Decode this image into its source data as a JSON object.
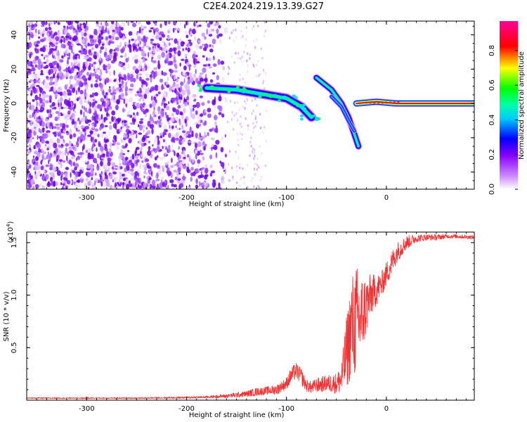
{
  "title": "C2E4.2024.219.13.39.G27",
  "chart_data": [
    {
      "type": "heatmap",
      "xlabel": "Height of straight line (km)",
      "ylabel": "Frequency (Hz)",
      "xlim": [
        -360,
        88
      ],
      "ylim": [
        -50,
        48
      ],
      "xticks": [
        -300,
        -200,
        -100,
        0
      ],
      "yticks": [
        -40,
        -20,
        0,
        20,
        40
      ],
      "colorbar": {
        "label": "Normalized spectral amplitude",
        "range": [
          0,
          0.97
        ],
        "ticks": [
          "0.0",
          "0.2",
          "0.4",
          "0.6",
          "0.8"
        ],
        "tick_values": [
          0,
          0.2,
          0.4,
          0.6,
          0.8
        ],
        "colors": [
          "#ffffff",
          "#8800ff",
          "#0000ff",
          "#00ffff",
          "#00ff00",
          "#ffff00",
          "#ff0000",
          "#ff00aa"
        ]
      },
      "features": [
        {
          "name": "noise",
          "x_range": [
            -360,
            -160
          ],
          "f_range": [
            -50,
            48
          ]
        },
        {
          "name": "band",
          "points": [
            [
              -180,
              9
            ],
            [
              -150,
              8
            ],
            [
              -120,
              5
            ],
            [
              -100,
              3
            ],
            [
              -85,
              -2
            ],
            [
              -75,
              -8
            ]
          ]
        },
        {
          "name": "branch",
          "points": [
            [
              -70,
              15
            ],
            [
              -55,
              8
            ],
            [
              -45,
              0
            ],
            [
              -38,
              -8
            ],
            [
              -32,
              -18
            ],
            [
              -28,
              -25
            ]
          ]
        },
        {
          "name": "branch",
          "points": [
            [
              -55,
              4
            ],
            [
              -45,
              -2
            ],
            [
              -38,
              -10
            ],
            [
              -32,
              -16
            ]
          ]
        },
        {
          "name": "carrier",
          "points": [
            [
              -30,
              0
            ],
            [
              -10,
              1
            ],
            [
              10,
              0
            ],
            [
              88,
              0
            ]
          ]
        }
      ]
    },
    {
      "type": "line",
      "xlabel": "Height of straight line (km)",
      "ylabel": "SNR (10 * v/v)",
      "y_multiplier": "(x10^4)",
      "xlim": [
        -360,
        88
      ],
      "ylim": [
        0,
        1.6
      ],
      "xticks": [
        -300,
        -200,
        -100,
        0
      ],
      "yticks": [
        0.5,
        1.0,
        1.5
      ],
      "ytick_labels": [
        "0.5",
        "1.0",
        "1.5"
      ],
      "color": "#ee3333",
      "series": [
        {
          "x": [
            -360,
            -300,
            -250,
            -200,
            -180,
            -160,
            -140,
            -130,
            -120,
            -110,
            -100,
            -95,
            -90,
            -85,
            -80,
            -75,
            -70,
            -60,
            -50,
            -45,
            -40,
            -35,
            -30,
            -25,
            -20,
            -15,
            -10,
            -5,
            0,
            5,
            10,
            20,
            30,
            40,
            50,
            60,
            70,
            88
          ],
          "y": [
            0.02,
            0.02,
            0.02,
            0.025,
            0.03,
            0.04,
            0.06,
            0.08,
            0.09,
            0.1,
            0.16,
            0.24,
            0.28,
            0.22,
            0.14,
            0.12,
            0.14,
            0.16,
            0.16,
            0.2,
            0.45,
            0.7,
            0.75,
            0.8,
            0.9,
            1.0,
            1.05,
            1.1,
            1.2,
            1.3,
            1.4,
            1.5,
            1.54,
            1.55,
            1.55,
            1.56,
            1.56,
            1.55
          ],
          "noise": [
            0.005,
            0.005,
            0.005,
            0.008,
            0.01,
            0.02,
            0.03,
            0.04,
            0.04,
            0.05,
            0.06,
            0.08,
            0.08,
            0.08,
            0.06,
            0.06,
            0.07,
            0.08,
            0.1,
            0.15,
            0.35,
            0.5,
            0.55,
            0.4,
            0.3,
            0.2,
            0.15,
            0.12,
            0.12,
            0.12,
            0.1,
            0.07,
            0.04,
            0.03,
            0.03,
            0.02,
            0.02,
            0.02
          ]
        }
      ]
    }
  ]
}
